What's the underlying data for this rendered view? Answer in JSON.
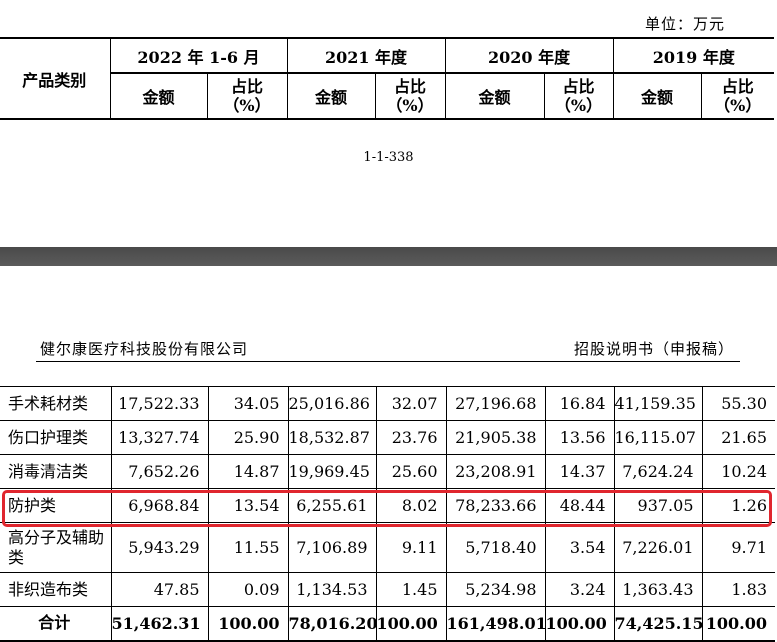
{
  "unit_label": "单位：万元",
  "header": {
    "category_label": "产品类别",
    "periods": [
      "2022 年 1-6 月",
      "2021 年度",
      "2020 年度",
      "2019 年度"
    ],
    "amount_label": "金额",
    "ratio_label_line1": "占比",
    "ratio_label_line2": "（%）"
  },
  "page_number": "1-1-338",
  "company_name": "健尔康医疗科技股份有限公司",
  "document_title": "招股说明书（申报稿）",
  "rows": [
    {
      "category": "手术耗材类",
      "values": [
        "17,522.33",
        "34.05",
        "25,016.86",
        "32.07",
        "27,196.68",
        "16.84",
        "41,159.35",
        "55.30"
      ]
    },
    {
      "category": "伤口护理类",
      "values": [
        "13,327.74",
        "25.90",
        "18,532.87",
        "23.76",
        "21,905.38",
        "13.56",
        "16,115.07",
        "21.65"
      ]
    },
    {
      "category": "消毒清洁类",
      "values": [
        "7,652.26",
        "14.87",
        "19,969.45",
        "25.60",
        "23,208.91",
        "14.37",
        "7,624.24",
        "10.24"
      ]
    },
    {
      "category": "防护类",
      "values": [
        "6,968.84",
        "13.54",
        "6,255.61",
        "8.02",
        "78,233.66",
        "48.44",
        "937.05",
        "1.26"
      ]
    },
    {
      "category": "高分子及辅助类",
      "values": [
        "5,943.29",
        "11.55",
        "7,106.89",
        "9.11",
        "5,718.40",
        "3.54",
        "7,226.01",
        "9.71"
      ]
    },
    {
      "category": "非织造布类",
      "values": [
        "47.85",
        "0.09",
        "1,134.53",
        "1.45",
        "5,234.98",
        "3.24",
        "1,363.43",
        "1.83"
      ]
    }
  ],
  "total": {
    "category": "合计",
    "values": [
      "51,462.31",
      "100.00",
      "78,016.20",
      "100.00",
      "161,498.01",
      "100.00",
      "74,425.15",
      "100.00"
    ]
  },
  "highlight_color": "#e0262e"
}
